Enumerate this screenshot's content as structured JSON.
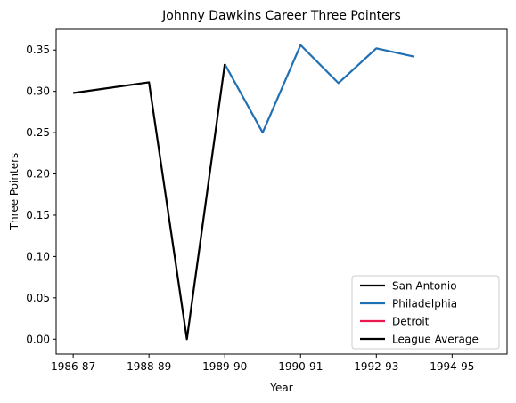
{
  "chart_data": {
    "type": "line",
    "title": "Johnny Dawkins Career Three Pointers",
    "xlabel": "Year",
    "ylabel": "Three Pointers",
    "x_tick_labels": [
      "1986-87",
      "1988-89",
      "1989-90",
      "1990-91",
      "1992-93",
      "1994-95"
    ],
    "x_tick_positions": [
      0,
      2,
      4,
      6,
      8,
      10
    ],
    "xlim": [
      -0.45,
      11.45
    ],
    "y_ticks": [
      0.0,
      0.05,
      0.1,
      0.15,
      0.2,
      0.25,
      0.3,
      0.35
    ],
    "y_tick_labels": [
      "0.00",
      "0.05",
      "0.10",
      "0.15",
      "0.20",
      "0.25",
      "0.30",
      "0.35"
    ],
    "ylim": [
      -0.018,
      0.375
    ],
    "grid": false,
    "legend_position": "bottom-right",
    "series": [
      {
        "name": "San Antonio",
        "color": "#000000",
        "x": [
          0,
          2,
          3,
          4
        ],
        "values": [
          0.298,
          0.311,
          0.0,
          0.333
        ]
      },
      {
        "name": "Philadelphia",
        "color": "#1f6fb4",
        "x": [
          4,
          5,
          6,
          7,
          8,
          9
        ],
        "values": [
          0.333,
          0.25,
          0.356,
          0.31,
          0.352,
          0.342
        ]
      },
      {
        "name": "Detroit",
        "color": "#e8174d",
        "x": [],
        "values": []
      },
      {
        "name": "League Average",
        "color": "#000000",
        "x": [],
        "values": []
      }
    ]
  }
}
